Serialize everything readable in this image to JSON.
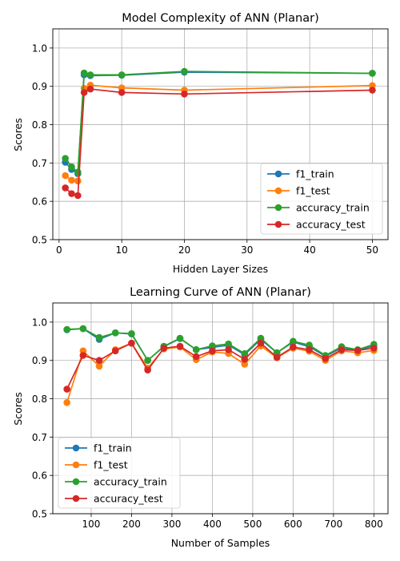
{
  "chart_data": [
    {
      "type": "line",
      "title": "Model Complexity of ANN (Planar)",
      "xlabel": "Hidden Layer Sizes",
      "ylabel": "Scores",
      "xlim": [
        -1,
        52.5
      ],
      "ylim": [
        0.5,
        1.05
      ],
      "xticks": [
        0,
        10,
        20,
        30,
        40,
        50
      ],
      "yticks": [
        0.5,
        0.6,
        0.7,
        0.8,
        0.9,
        1.0
      ],
      "grid": true,
      "legend_position": "lower-right",
      "x": [
        1,
        2,
        3,
        4,
        5,
        10,
        20,
        50
      ],
      "series": [
        {
          "name": "f1_train",
          "color": "#1f77b4",
          "values": [
            0.702,
            0.683,
            0.672,
            0.93,
            0.928,
            0.929,
            0.937,
            0.934
          ]
        },
        {
          "name": "f1_test",
          "color": "#ff7f0e",
          "values": [
            0.667,
            0.655,
            0.653,
            0.895,
            0.903,
            0.896,
            0.89,
            0.902
          ]
        },
        {
          "name": "accuracy_train",
          "color": "#2ca02c",
          "values": [
            0.712,
            0.69,
            0.676,
            0.935,
            0.93,
            0.93,
            0.939,
            0.934
          ]
        },
        {
          "name": "accuracy_test",
          "color": "#d62728",
          "values": [
            0.635,
            0.62,
            0.615,
            0.884,
            0.893,
            0.884,
            0.88,
            0.89
          ]
        }
      ]
    },
    {
      "type": "line",
      "title": "Learning Curve of ANN (Planar)",
      "xlabel": "Number of Samples",
      "ylabel": "Scores",
      "xlim": [
        5,
        835
      ],
      "ylim": [
        0.5,
        1.05
      ],
      "xticks": [
        100,
        200,
        300,
        400,
        500,
        600,
        700,
        800
      ],
      "yticks": [
        0.5,
        0.6,
        0.7,
        0.8,
        0.9,
        1.0
      ],
      "grid": true,
      "legend_position": "lower-left",
      "x": [
        40,
        80,
        120,
        160,
        200,
        240,
        280,
        320,
        360,
        400,
        440,
        480,
        520,
        560,
        600,
        640,
        680,
        720,
        760,
        800
      ],
      "series": [
        {
          "name": "f1_train",
          "color": "#1f77b4",
          "values": [
            0.98,
            0.983,
            0.955,
            0.972,
            0.969,
            0.9,
            0.936,
            0.957,
            0.928,
            0.934,
            0.94,
            0.915,
            0.955,
            0.92,
            0.948,
            0.936,
            0.911,
            0.933,
            0.926,
            0.938
          ]
        },
        {
          "name": "f1_test",
          "color": "#ff7f0e",
          "values": [
            0.79,
            0.925,
            0.885,
            0.928,
            0.945,
            0.88,
            0.93,
            0.935,
            0.902,
            0.922,
            0.918,
            0.89,
            0.938,
            0.907,
            0.932,
            0.924,
            0.9,
            0.925,
            0.92,
            0.926
          ]
        },
        {
          "name": "accuracy_train",
          "color": "#2ca02c",
          "values": [
            0.981,
            0.983,
            0.96,
            0.972,
            0.97,
            0.9,
            0.937,
            0.958,
            0.928,
            0.938,
            0.943,
            0.918,
            0.958,
            0.92,
            0.95,
            0.94,
            0.913,
            0.936,
            0.928,
            0.942
          ]
        },
        {
          "name": "accuracy_test",
          "color": "#d62728",
          "values": [
            0.825,
            0.913,
            0.9,
            0.925,
            0.945,
            0.875,
            0.932,
            0.937,
            0.91,
            0.925,
            0.928,
            0.903,
            0.945,
            0.908,
            0.935,
            0.928,
            0.905,
            0.928,
            0.926,
            0.932
          ]
        }
      ]
    }
  ]
}
